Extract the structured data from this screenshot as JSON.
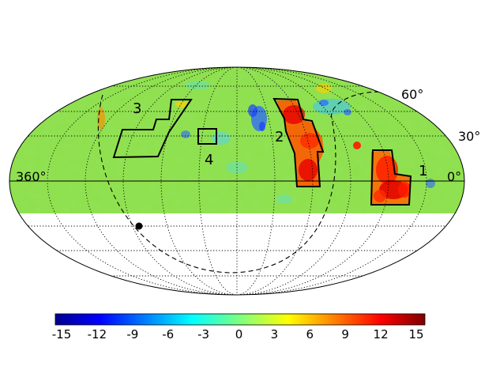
{
  "map": {
    "projection": "Mollweide (equal-area), full sky",
    "coverage": "declination >= -20 deg shaded; southern cap blank",
    "graticule": {
      "parallels_deg": [
        60,
        30,
        0,
        -30,
        -60
      ],
      "meridian_step_deg": 30,
      "style": "dotted"
    },
    "latitude_labels": [
      "60°",
      "30°",
      "0°"
    ],
    "longitude_labels": [
      "360°"
    ],
    "dashed_curve": "dashed boundary curve",
    "marker": "filled black point",
    "colors": {
      "background_field": "#8fe04a",
      "equator_line": "#000000",
      "outline": "#000000"
    }
  },
  "regions": [
    {
      "id": "1",
      "label": "1",
      "note": "hot-spot region (red/orange)"
    },
    {
      "id": "2",
      "label": "2",
      "note": "elongated hot region (red/orange)"
    },
    {
      "id": "3",
      "label": "3",
      "note": "staircase region (mostly green/yellow)"
    },
    {
      "id": "4",
      "label": "4",
      "note": "small square region"
    }
  ],
  "colorbar": {
    "min": -15,
    "max": 15,
    "tick_labels": [
      "-15",
      "-12",
      "-9",
      "-6",
      "-3",
      "0",
      "3",
      "6",
      "9",
      "12",
      "15"
    ],
    "colormap": "jet",
    "stops": [
      "#00008f",
      "#0000ff",
      "#00ffff",
      "#7fff7f",
      "#ffff00",
      "#ff0000",
      "#7f0000"
    ]
  }
}
